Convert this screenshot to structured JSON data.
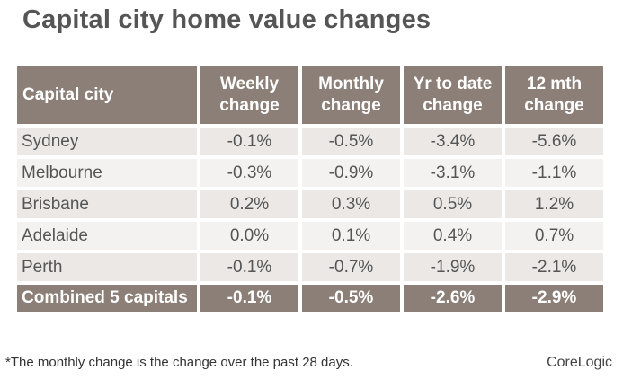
{
  "title": "Capital city home value changes",
  "table": {
    "headers": [
      [
        "Capital city"
      ],
      [
        "Weekly",
        "change"
      ],
      [
        "Monthly",
        "change"
      ],
      [
        "Yr to date",
        "change"
      ],
      [
        "12 mth",
        "change"
      ]
    ],
    "rows": [
      [
        "Sydney",
        "-0.1%",
        "-0.5%",
        "-3.4%",
        "-5.6%"
      ],
      [
        "Melbourne",
        "-0.3%",
        "-0.9%",
        "-3.1%",
        "-1.1%"
      ],
      [
        "Brisbane",
        "0.2%",
        "0.3%",
        "0.5%",
        "1.2%"
      ],
      [
        "Adelaide",
        "0.0%",
        "0.1%",
        "0.4%",
        "0.7%"
      ],
      [
        "Perth",
        "-0.1%",
        "-0.7%",
        "-1.9%",
        "-2.1%"
      ]
    ],
    "total": [
      "Combined 5 capitals",
      "-0.1%",
      "-0.5%",
      "-2.6%",
      "-2.9%"
    ]
  },
  "footnote": "*The monthly change is the change over the past 28 days.",
  "brand": "CoreLogic",
  "colors": {
    "header_bg": "#8b7f77",
    "row_odd": "#ebe8e6",
    "row_even": "#f4f2f1",
    "title": "#555555"
  }
}
